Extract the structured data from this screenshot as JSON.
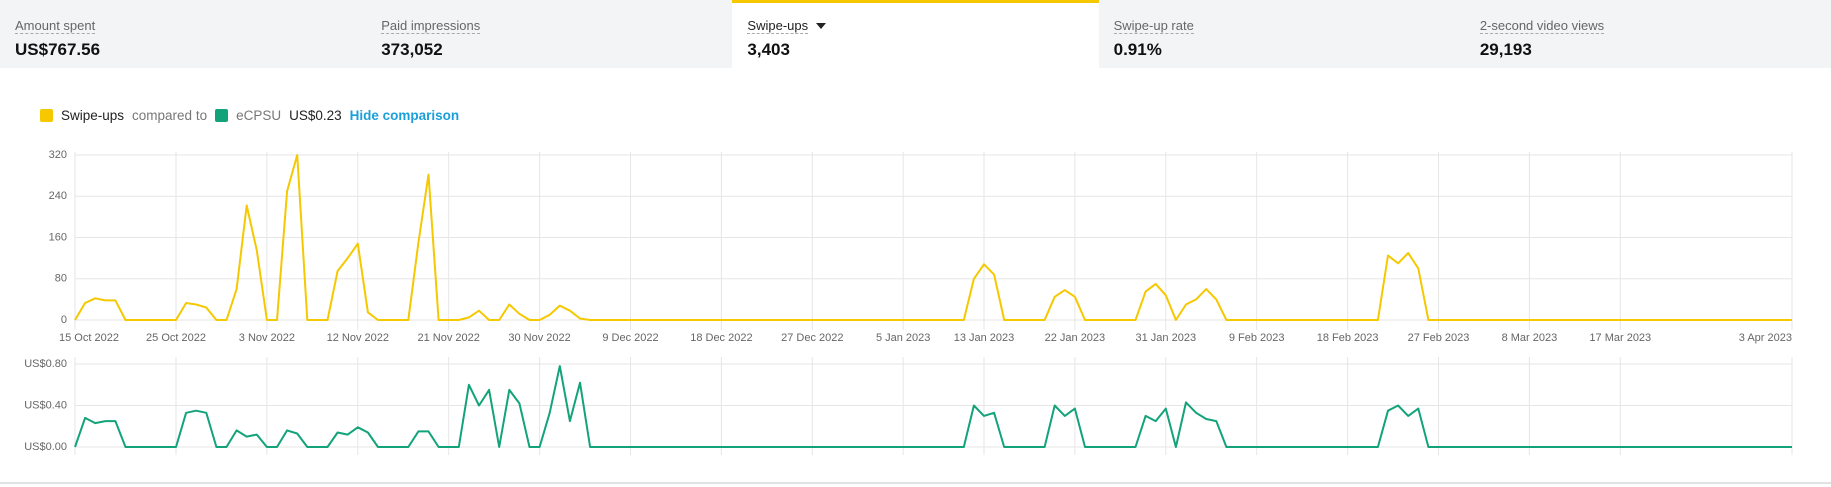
{
  "tabs": [
    {
      "label": "Amount spent",
      "value": "US$767.56"
    },
    {
      "label": "Paid impressions",
      "value": "373,052"
    },
    {
      "label": "Swipe-ups",
      "value": "3,403"
    },
    {
      "label": "Swipe-up rate",
      "value": "0.91%"
    },
    {
      "label": "2-second video views",
      "value": "29,193"
    }
  ],
  "selected_tab": 2,
  "legend": {
    "compared_to": "compared to",
    "comparison_value": "US$0.23",
    "action": "Hide comparison"
  },
  "chart_data": [
    {
      "type": "line",
      "x": [
        "2022-10-15",
        "2022-10-16",
        "2022-10-17",
        "2022-10-18",
        "2022-10-19",
        "2022-10-20",
        "2022-10-25",
        "2022-10-26",
        "2022-10-27",
        "2022-10-28",
        "2022-10-29",
        "2022-10-30",
        "2022-10-31",
        "2022-11-01",
        "2022-11-02",
        "2022-11-03",
        "2022-11-04",
        "2022-11-05",
        "2022-11-06",
        "2022-11-07",
        "2022-11-09",
        "2022-11-10",
        "2022-11-11",
        "2022-11-12",
        "2022-11-13",
        "2022-11-14",
        "2022-11-17",
        "2022-11-18",
        "2022-11-19",
        "2022-11-20",
        "2022-11-22",
        "2022-11-23",
        "2022-11-24",
        "2022-11-25",
        "2022-11-26",
        "2022-11-27",
        "2022-11-28",
        "2022-11-29",
        "2022-11-30",
        "2022-12-01",
        "2022-12-02",
        "2022-12-03",
        "2022-12-04",
        "2022-12-05",
        "2023-01-11",
        "2023-01-12",
        "2023-01-13",
        "2023-01-14",
        "2023-01-15",
        "2023-01-19",
        "2023-01-20",
        "2023-01-21",
        "2023-01-22",
        "2023-01-23",
        "2023-01-28",
        "2023-01-29",
        "2023-01-30",
        "2023-01-31",
        "2023-02-01",
        "2023-02-02",
        "2023-02-03",
        "2023-02-04",
        "2023-02-05",
        "2023-02-06",
        "2023-02-21",
        "2023-02-22",
        "2023-02-23",
        "2023-02-24",
        "2023-02-25",
        "2023-02-26",
        "2023-04-03"
      ],
      "series": [
        {
          "name": "Swipe-ups",
          "color": "#f5c800",
          "values": [
            0,
            33,
            42,
            38,
            38,
            0,
            0,
            33,
            30,
            24,
            0,
            0,
            60,
            222,
            135,
            0,
            0,
            250,
            320,
            0,
            0,
            95,
            120,
            148,
            15,
            0,
            0,
            150,
            282,
            0,
            0,
            5,
            18,
            0,
            0,
            30,
            12,
            0,
            0,
            10,
            28,
            18,
            3,
            0,
            0,
            80,
            108,
            88,
            0,
            0,
            45,
            58,
            45,
            0,
            0,
            55,
            70,
            48,
            0,
            30,
            40,
            60,
            40,
            0,
            0,
            125,
            110,
            130,
            100,
            0,
            0
          ]
        }
      ],
      "xlim": [
        "2022-10-15",
        "2023-04-03"
      ],
      "xticks": [
        {
          "value": "2022-10-15",
          "label": "15 Oct 2022"
        },
        {
          "value": "2022-10-25",
          "label": "25 Oct 2022"
        },
        {
          "value": "2022-11-03",
          "label": "3 Nov 2022"
        },
        {
          "value": "2022-11-12",
          "label": "12 Nov 2022"
        },
        {
          "value": "2022-11-21",
          "label": "21 Nov 2022"
        },
        {
          "value": "2022-11-30",
          "label": "30 Nov 2022"
        },
        {
          "value": "2022-12-09",
          "label": "9 Dec 2022"
        },
        {
          "value": "2022-12-18",
          "label": "18 Dec 2022"
        },
        {
          "value": "2022-12-27",
          "label": "27 Dec 2022"
        },
        {
          "value": "2023-01-05",
          "label": "5 Jan 2023"
        },
        {
          "value": "2023-01-13",
          "label": "13 Jan 2023"
        },
        {
          "value": "2023-01-22",
          "label": "22 Jan 2023"
        },
        {
          "value": "2023-01-31",
          "label": "31 Jan 2023"
        },
        {
          "value": "2023-02-09",
          "label": "9 Feb 2023"
        },
        {
          "value": "2023-02-18",
          "label": "18 Feb 2023"
        },
        {
          "value": "2023-02-27",
          "label": "27 Feb 2023"
        },
        {
          "value": "2023-03-08",
          "label": "8 Mar 2023"
        },
        {
          "value": "2023-03-17",
          "label": "17 Mar 2023"
        },
        {
          "value": "2023-04-03",
          "label": "3 Apr 2023"
        }
      ],
      "ylim": [
        0,
        320
      ],
      "yticks": [
        0,
        80,
        160,
        240,
        320
      ],
      "grid": true
    },
    {
      "type": "line",
      "x": [
        "2022-10-15",
        "2022-10-16",
        "2022-10-17",
        "2022-10-18",
        "2022-10-19",
        "2022-10-20",
        "2022-10-25",
        "2022-10-26",
        "2022-10-27",
        "2022-10-28",
        "2022-10-29",
        "2022-10-30",
        "2022-10-31",
        "2022-11-01",
        "2022-11-02",
        "2022-11-03",
        "2022-11-04",
        "2022-11-05",
        "2022-11-06",
        "2022-11-07",
        "2022-11-09",
        "2022-11-10",
        "2022-11-11",
        "2022-11-12",
        "2022-11-13",
        "2022-11-14",
        "2022-11-17",
        "2022-11-18",
        "2022-11-19",
        "2022-11-20",
        "2022-11-22",
        "2022-11-23",
        "2022-11-24",
        "2022-11-25",
        "2022-11-26",
        "2022-11-27",
        "2022-11-28",
        "2022-11-29",
        "2022-11-30",
        "2022-12-01",
        "2022-12-02",
        "2022-12-03",
        "2022-12-04",
        "2022-12-05",
        "2023-01-11",
        "2023-01-12",
        "2023-01-13",
        "2023-01-14",
        "2023-01-15",
        "2023-01-19",
        "2023-01-20",
        "2023-01-21",
        "2023-01-22",
        "2023-01-23",
        "2023-01-28",
        "2023-01-29",
        "2023-01-30",
        "2023-01-31",
        "2023-02-01",
        "2023-02-02",
        "2023-02-03",
        "2023-02-04",
        "2023-02-05",
        "2023-02-06",
        "2023-02-21",
        "2023-02-22",
        "2023-02-23",
        "2023-02-24",
        "2023-02-25",
        "2023-02-26",
        "2023-04-03"
      ],
      "series": [
        {
          "name": "eCPSU",
          "color": "#13a37a",
          "values": [
            0,
            0.28,
            0.23,
            0.25,
            0.25,
            0,
            0,
            0.33,
            0.35,
            0.33,
            0,
            0,
            0.16,
            0.1,
            0.12,
            0,
            0,
            0.16,
            0.13,
            0,
            0,
            0.14,
            0.12,
            0.19,
            0.14,
            0,
            0,
            0.15,
            0.15,
            0,
            0,
            0.6,
            0.4,
            0.55,
            0,
            0.55,
            0.42,
            0,
            0,
            0.33,
            0.78,
            0.25,
            0.62,
            0,
            0,
            0.4,
            0.3,
            0.33,
            0,
            0,
            0.4,
            0.3,
            0.37,
            0,
            0,
            0.3,
            0.25,
            0.37,
            0,
            0.43,
            0.33,
            0.27,
            0.25,
            0,
            0,
            0.35,
            0.4,
            0.3,
            0.37,
            0,
            0
          ]
        }
      ],
      "xlim": [
        "2022-10-15",
        "2023-04-03"
      ],
      "ylim": [
        0,
        0.8
      ],
      "yticks": [
        {
          "value": 0,
          "label": "US$0.00"
        },
        {
          "value": 0.4,
          "label": "US$0.40"
        },
        {
          "value": 0.8,
          "label": "US$0.80"
        }
      ],
      "grid": true
    }
  ]
}
